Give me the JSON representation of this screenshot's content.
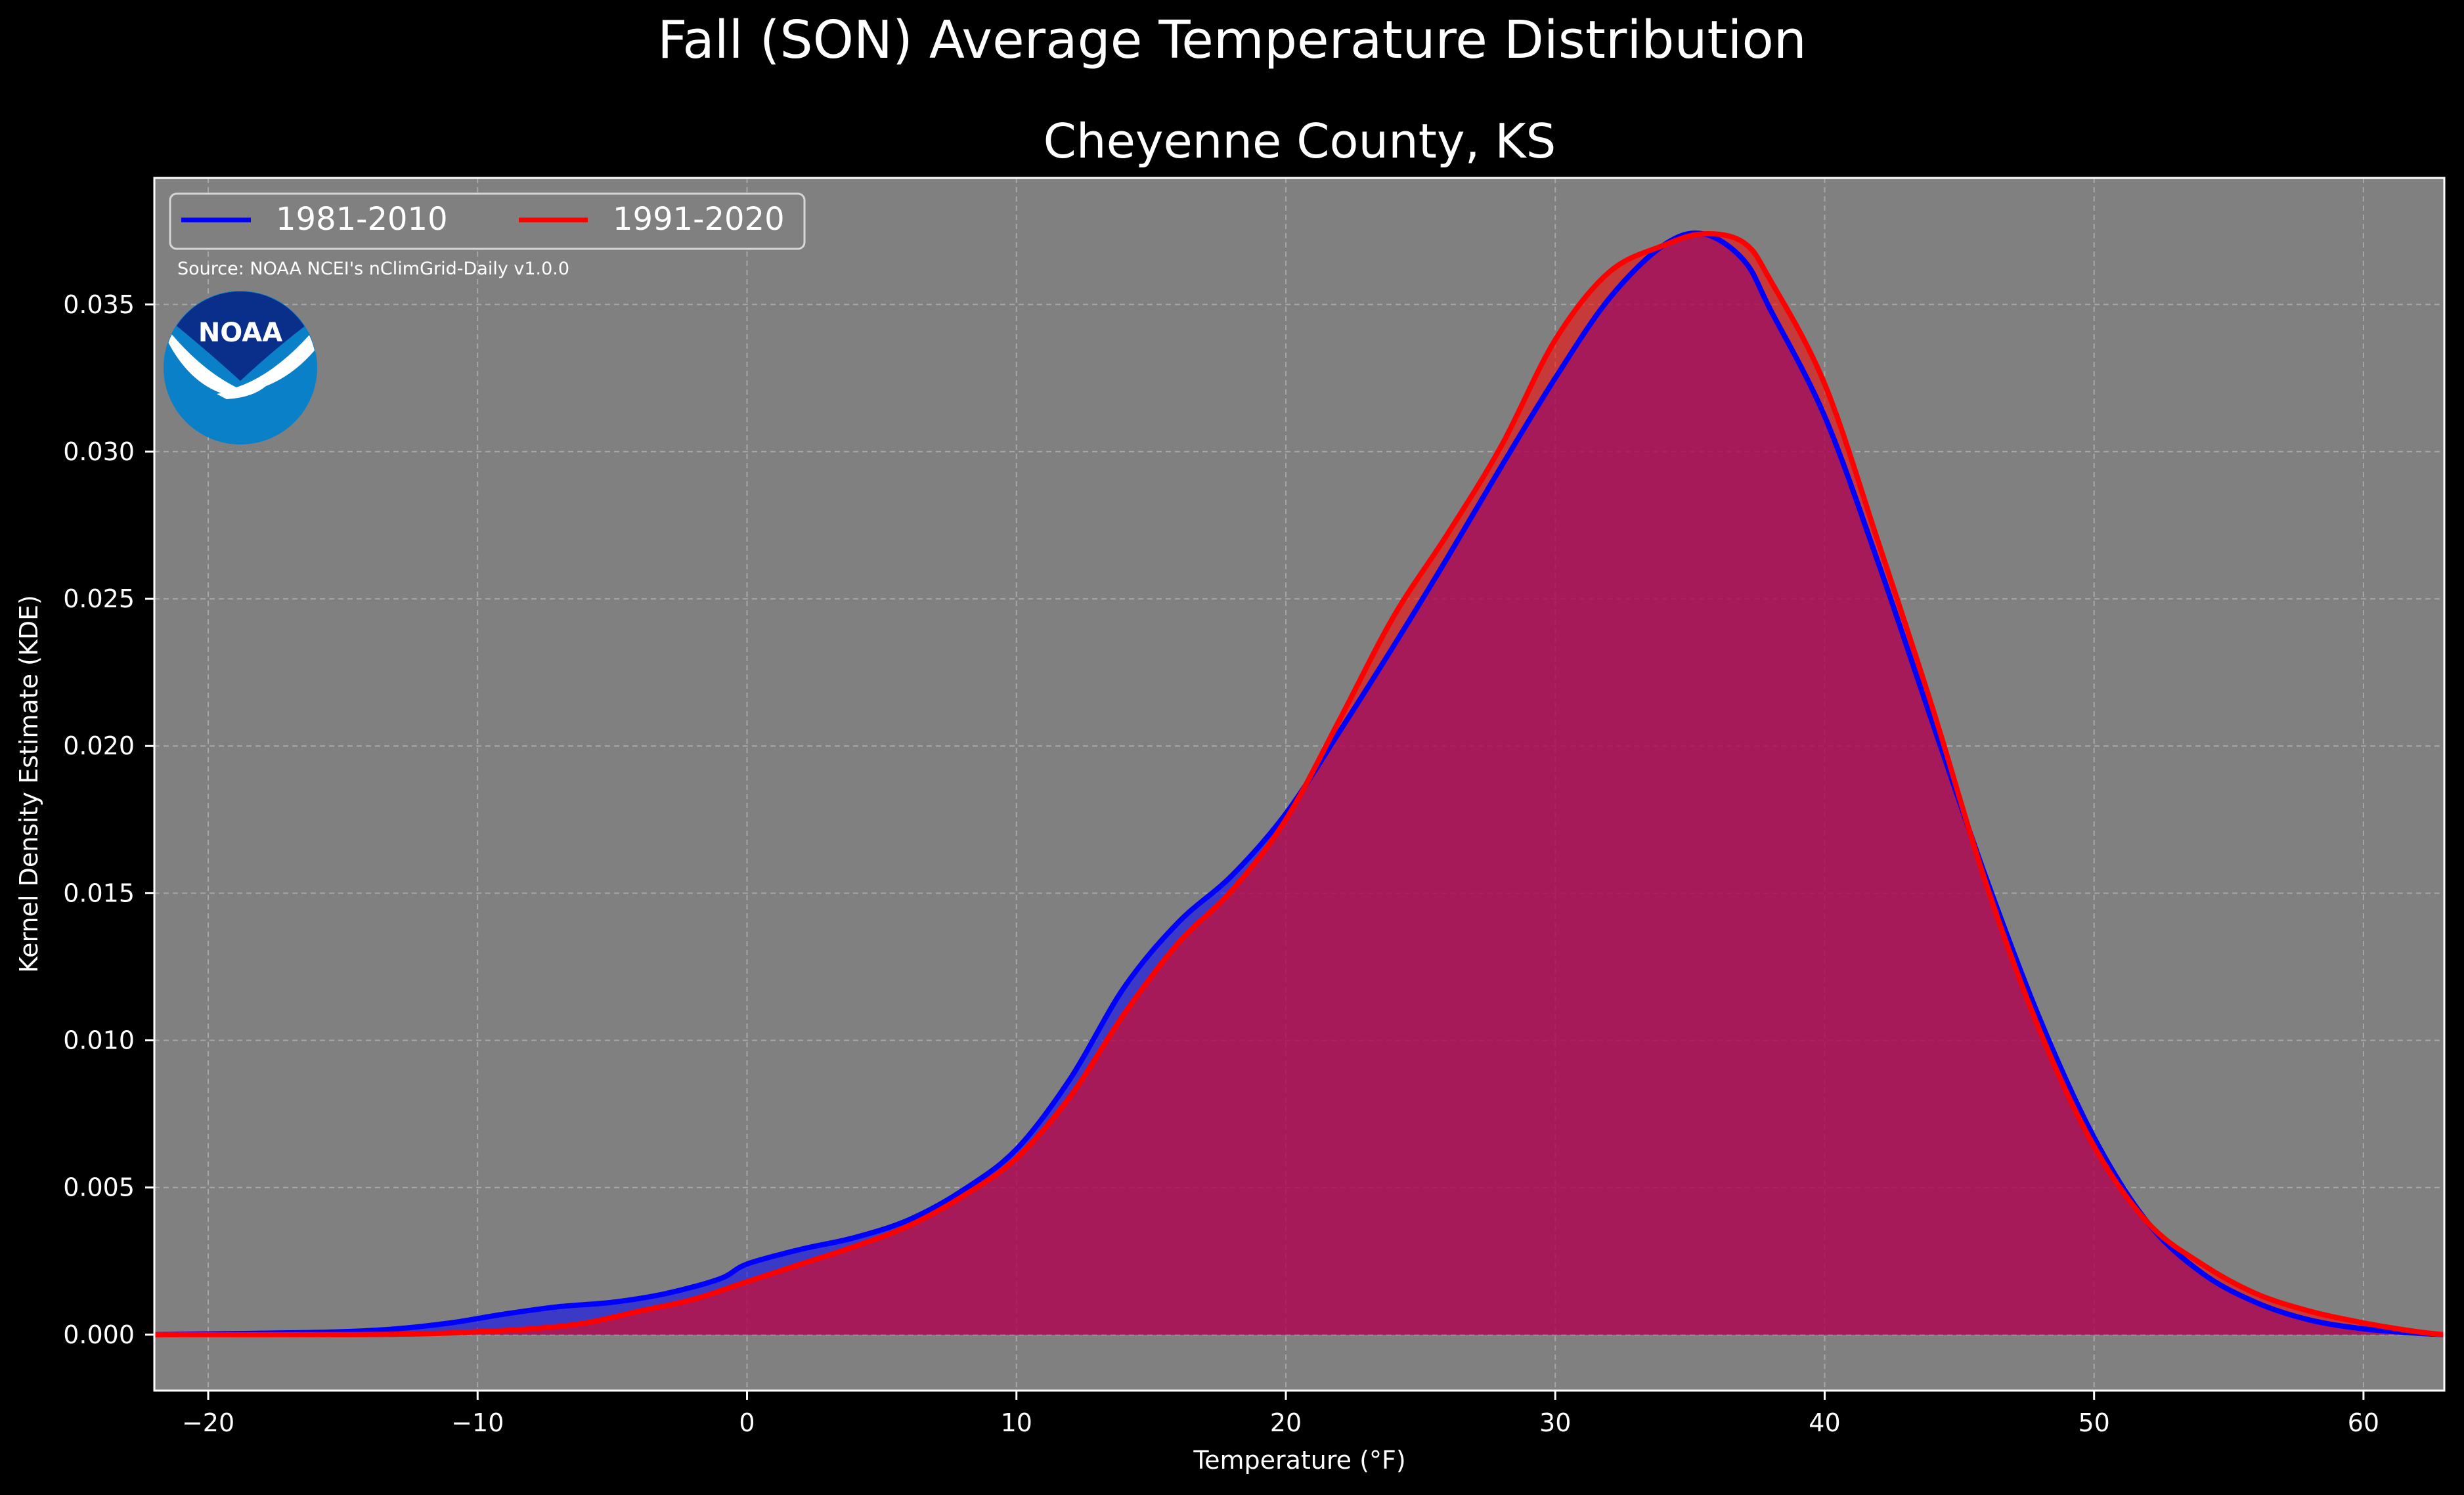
{
  "figure": {
    "suptitle": "Fall (SON) Average Temperature Distribution",
    "title": "Cheyenne County, KS",
    "source": "Source: NOAA NCEI's nClimGrid-Daily v1.0.0",
    "logo_text": "NOAA"
  },
  "colors": {
    "background": "#000000",
    "axes_bg": "#808080",
    "series_1981_2010": "#0000ff",
    "series_1991_2020": "#ff0000",
    "overlap_fill": "#9c1c5c"
  },
  "chart_data": {
    "type": "area",
    "xlabel": "Temperature ($^\\circ$F)",
    "xlabel_display": "Temperature (°F)",
    "ylabel": "Kernel Density Estimate (KDE)",
    "xlim": [
      -22,
      63
    ],
    "ylim": [
      -0.0019,
      0.0393
    ],
    "xticks": [
      -20,
      -10,
      0,
      10,
      20,
      30,
      40,
      50,
      60
    ],
    "xtick_labels": [
      "−20",
      "−10",
      "0",
      "10",
      "20",
      "30",
      "40",
      "50",
      "60"
    ],
    "yticks": [
      0.0,
      0.005,
      0.01,
      0.015,
      0.02,
      0.025,
      0.03,
      0.035
    ],
    "ytick_labels": [
      "0.000",
      "0.005",
      "0.010",
      "0.015",
      "0.020",
      "0.025",
      "0.030",
      "0.035"
    ],
    "grid": true,
    "legend_position": "top-left",
    "series": [
      {
        "name": "1981-2010",
        "color": "#0000ff",
        "points": [
          [
            -22,
            0.0
          ],
          [
            -18,
            5e-05
          ],
          [
            -15,
            0.0001
          ],
          [
            -13,
            0.0002
          ],
          [
            -11,
            0.0004
          ],
          [
            -9,
            0.0007
          ],
          [
            -7,
            0.00095
          ],
          [
            -5,
            0.0011
          ],
          [
            -3,
            0.0014
          ],
          [
            -1,
            0.0019
          ],
          [
            0,
            0.0024
          ],
          [
            2,
            0.0029
          ],
          [
            4,
            0.0033
          ],
          [
            6,
            0.0039
          ],
          [
            8,
            0.0049
          ],
          [
            10,
            0.0063
          ],
          [
            12,
            0.0087
          ],
          [
            14,
            0.0118
          ],
          [
            16,
            0.014
          ],
          [
            18,
            0.0156
          ],
          [
            20,
            0.0177
          ],
          [
            22,
            0.0205
          ],
          [
            24,
            0.0234
          ],
          [
            26,
            0.0264
          ],
          [
            28,
            0.0295
          ],
          [
            30,
            0.0325
          ],
          [
            32,
            0.0352
          ],
          [
            34,
            0.037
          ],
          [
            35.5,
            0.0374
          ],
          [
            37,
            0.0365
          ],
          [
            38,
            0.0348
          ],
          [
            40,
            0.0312
          ],
          [
            42,
            0.0262
          ],
          [
            44,
            0.0208
          ],
          [
            46,
            0.0155
          ],
          [
            48,
            0.0107
          ],
          [
            50,
            0.0067
          ],
          [
            52,
            0.0038
          ],
          [
            54,
            0.0021
          ],
          [
            56,
            0.0011
          ],
          [
            58,
            0.0005
          ],
          [
            60,
            0.0002
          ],
          [
            62,
            5e-05
          ],
          [
            63,
            0.0
          ]
        ]
      },
      {
        "name": "1991-2020",
        "color": "#ff0000",
        "points": [
          [
            -22,
            0.0
          ],
          [
            -15,
            0.0
          ],
          [
            -12,
            3e-05
          ],
          [
            -10,
            0.0001
          ],
          [
            -8,
            0.0002
          ],
          [
            -6,
            0.0004
          ],
          [
            -4,
            0.0008
          ],
          [
            -2,
            0.0012
          ],
          [
            0,
            0.0018
          ],
          [
            2,
            0.0024
          ],
          [
            4,
            0.003
          ],
          [
            6,
            0.0037
          ],
          [
            8,
            0.0047
          ],
          [
            10,
            0.006
          ],
          [
            12,
            0.0081
          ],
          [
            14,
            0.0109
          ],
          [
            16,
            0.0133
          ],
          [
            18,
            0.0151
          ],
          [
            20,
            0.0175
          ],
          [
            22,
            0.0209
          ],
          [
            24,
            0.0244
          ],
          [
            26,
            0.0272
          ],
          [
            28,
            0.0302
          ],
          [
            30,
            0.0338
          ],
          [
            32,
            0.0361
          ],
          [
            34,
            0.037
          ],
          [
            35.5,
            0.0374
          ],
          [
            37,
            0.0371
          ],
          [
            38,
            0.0358
          ],
          [
            40,
            0.0323
          ],
          [
            42,
            0.0269
          ],
          [
            44,
            0.0213
          ],
          [
            46,
            0.0153
          ],
          [
            48,
            0.0103
          ],
          [
            50,
            0.0064
          ],
          [
            52,
            0.0038
          ],
          [
            54,
            0.0024
          ],
          [
            56,
            0.0014
          ],
          [
            58,
            0.0008
          ],
          [
            60,
            0.0004
          ],
          [
            62,
            0.0001
          ],
          [
            63,
            0.0
          ]
        ]
      }
    ]
  }
}
